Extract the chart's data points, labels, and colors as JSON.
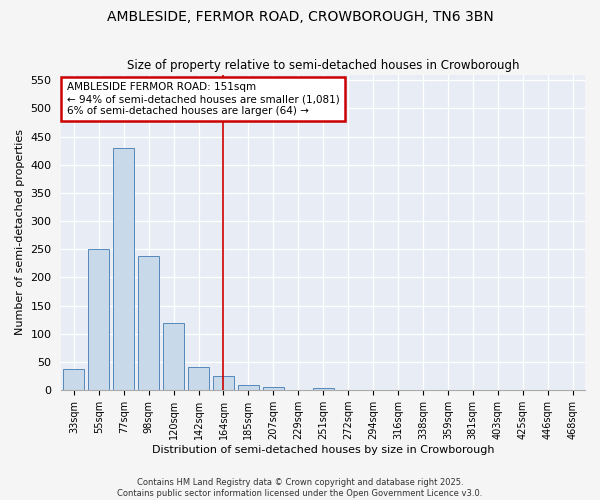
{
  "title": "AMBLESIDE, FERMOR ROAD, CROWBOROUGH, TN6 3BN",
  "subtitle": "Size of property relative to semi-detached houses in Crowborough",
  "xlabel": "Distribution of semi-detached houses by size in Crowborough",
  "ylabel": "Number of semi-detached properties",
  "categories": [
    "33sqm",
    "55sqm",
    "77sqm",
    "98sqm",
    "120sqm",
    "142sqm",
    "164sqm",
    "185sqm",
    "207sqm",
    "229sqm",
    "251sqm",
    "272sqm",
    "294sqm",
    "316sqm",
    "338sqm",
    "359sqm",
    "381sqm",
    "403sqm",
    "425sqm",
    "446sqm",
    "468sqm"
  ],
  "values": [
    38,
    250,
    430,
    238,
    120,
    42,
    25,
    10,
    5,
    0,
    4,
    0,
    0,
    0,
    0,
    0,
    0,
    0,
    0,
    0,
    0
  ],
  "bar_color": "#c8d9ea",
  "bar_edge_color": "#5588bb",
  "annotation_title": "AMBLESIDE FERMOR ROAD: 151sqm",
  "annotation_line1": "← 94% of semi-detached houses are smaller (1,081)",
  "annotation_line2": "6% of semi-detached houses are larger (64) →",
  "annotation_box_facecolor": "#ffffff",
  "annotation_box_edgecolor": "#cc0000",
  "highlight_line_color": "#cc0000",
  "ylim": [
    0,
    560
  ],
  "yticks": [
    0,
    50,
    100,
    150,
    200,
    250,
    300,
    350,
    400,
    450,
    500,
    550
  ],
  "plot_bg_color": "#e8edf5",
  "fig_bg_color": "#f5f5f5",
  "footer_line1": "Contains HM Land Registry data © Crown copyright and database right 2025.",
  "footer_line2": "Contains public sector information licensed under the Open Government Licence v3.0."
}
